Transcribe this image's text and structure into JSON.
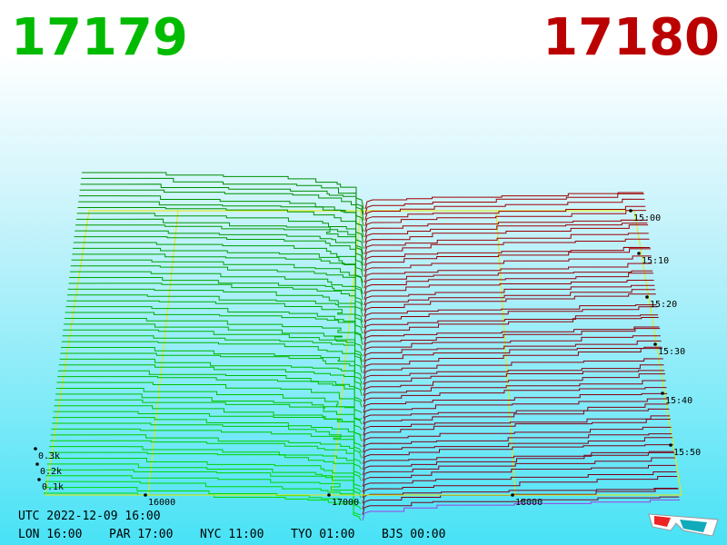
{
  "header": {
    "bid": "17179",
    "ask": "17180"
  },
  "price_axis": [
    "16000",
    "17000",
    "18000"
  ],
  "time_axis": [
    "15:00",
    "15:10",
    "15:20",
    "15:30",
    "15:40",
    "15:50"
  ],
  "depth_axis": [
    "0.3k",
    "0.2k",
    "0.1k"
  ],
  "footer": {
    "utc": "UTC 2022-12-09 16:00",
    "clocks": [
      "LON 16:00",
      "PAR 17:00",
      "NYC 11:00",
      "TYO 01:00",
      "BJS 00:00"
    ]
  }
}
